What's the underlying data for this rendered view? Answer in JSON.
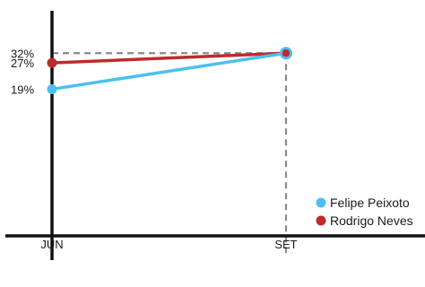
{
  "chart_data": {
    "type": "line",
    "title": "",
    "xlabel": "",
    "ylabel": "",
    "categories": [
      "JUN",
      "SET"
    ],
    "series": [
      {
        "name": "Felipe Peixoto",
        "values": [
          19,
          32
        ],
        "color": "#4DBFEF"
      },
      {
        "name": "Rodrigo Neves",
        "values": [
          27,
          32
        ],
        "color": "#BE2B2B"
      }
    ],
    "y_tick_labels": [
      {
        "value": 32,
        "label": "32%"
      },
      {
        "value": 27,
        "label": "27%"
      },
      {
        "value": 19,
        "label": "19%"
      }
    ],
    "ylim": [
      0,
      34
    ],
    "grid": false,
    "reference_lines": "dashed guides from the 32% tick to the SET point and down to the axis",
    "legend": "bottom-right",
    "colors": {
      "axis": "#111111",
      "guide": "#8a8a8a",
      "text": "#1a1a1a"
    }
  }
}
